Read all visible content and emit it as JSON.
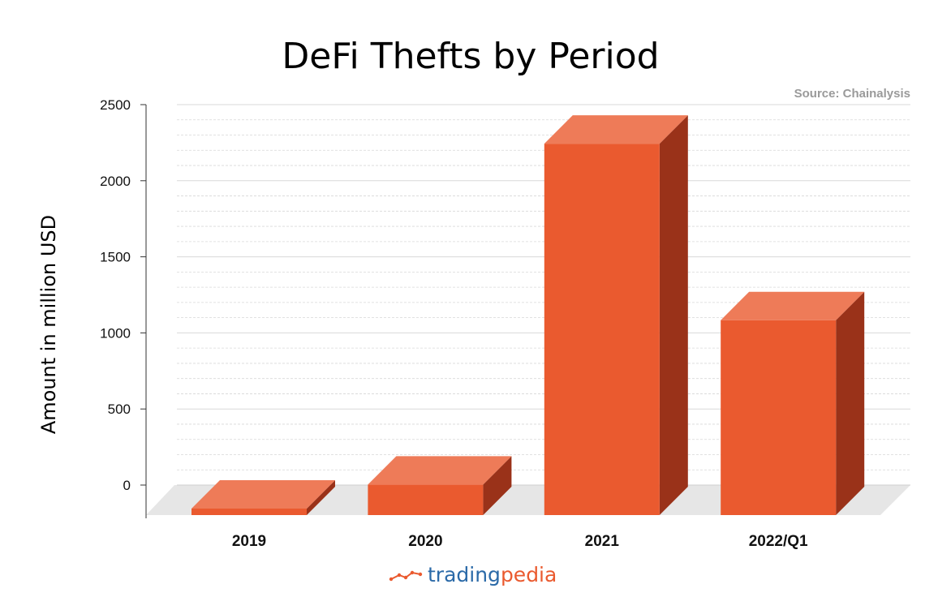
{
  "chart_data": {
    "type": "bar",
    "title": "DeFi Thefts by Period",
    "source": "Source: Chainalysis",
    "xlabel": "",
    "ylabel": "Amount in million USD",
    "categories": [
      "2019",
      "2020",
      "2021",
      "2022/Q1"
    ],
    "values": [
      30,
      190,
      2430,
      1270
    ],
    "ylim": [
      0,
      2500
    ],
    "yticks": [
      "0",
      "500",
      "1000",
      "1500",
      "2000",
      "2500"
    ],
    "grid": true,
    "legend": "none",
    "style": "3d-columns"
  },
  "brand": {
    "part1": "trading",
    "part2": "pedia",
    "logo_icon": "trend-line-icon"
  },
  "colors": {
    "bar_front": "#ea5a2f",
    "bar_top": "#ee7b58",
    "bar_side": "#9a3219",
    "floor": "#e6e6e6",
    "grid": "#d8d8d8",
    "brand_trading": "#2b6aa8",
    "brand_pedia": "#ea5a2f"
  }
}
